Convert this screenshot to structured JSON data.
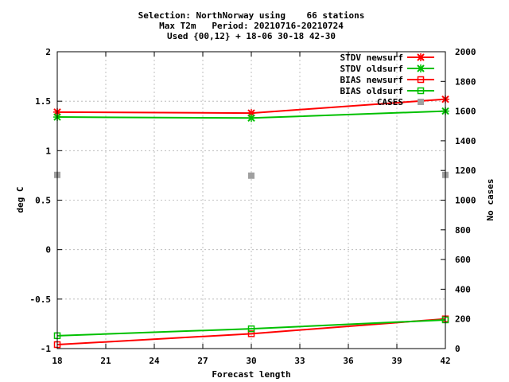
{
  "chart_data": {
    "type": "line",
    "title_lines": [
      "Selection: NorthNorway using    66 stations",
      "Max T2m   Period: 20210716-20210724",
      "Used {00,12} + 18-06 30-18 42-30"
    ],
    "xlabel": "Forecast length",
    "ylabel": "deg C",
    "y2label": "No cases",
    "xlim": [
      18,
      42
    ],
    "ylim": [
      -1,
      2
    ],
    "y2lim": [
      0,
      2000
    ],
    "x_ticks": [
      18,
      21,
      24,
      27,
      30,
      33,
      36,
      39,
      42
    ],
    "y_ticks": [
      {
        "value": -1,
        "label": "-1"
      },
      {
        "value": -0.5,
        "label": "-0.5"
      },
      {
        "value": 0,
        "label": "0"
      },
      {
        "value": 0.5,
        "label": "0.5"
      },
      {
        "value": 1,
        "label": "1"
      },
      {
        "value": 1.5,
        "label": "1.5"
      },
      {
        "value": 2,
        "label": "2"
      }
    ],
    "y2_ticks": [
      0,
      200,
      400,
      600,
      800,
      1000,
      1200,
      1400,
      1600,
      1800,
      2000
    ],
    "grid": true,
    "legend_position": "top-right",
    "series": [
      {
        "name": "STDV newsurf",
        "color": "#ff0000",
        "marker": "x",
        "axis": "y",
        "x": [
          18,
          30,
          42
        ],
        "values": [
          1.39,
          1.38,
          1.52
        ]
      },
      {
        "name": "STDV oldsurf",
        "color": "#00c000",
        "marker": "x",
        "axis": "y",
        "x": [
          18,
          30,
          42
        ],
        "values": [
          1.34,
          1.33,
          1.4
        ]
      },
      {
        "name": "BIAS newsurf",
        "color": "#ff0000",
        "marker": "square",
        "axis": "y",
        "x": [
          18,
          30,
          42
        ],
        "values": [
          -0.96,
          -0.85,
          -0.7
        ]
      },
      {
        "name": "BIAS oldsurf",
        "color": "#00c000",
        "marker": "square",
        "axis": "y",
        "x": [
          18,
          30,
          42
        ],
        "values": [
          -0.87,
          -0.8,
          -0.71
        ]
      },
      {
        "name": "CASES",
        "color": "#a0a0a0",
        "marker": "filled-square",
        "axis": "y2",
        "x": [
          18,
          30,
          42
        ],
        "values": [
          1170,
          1165,
          1170
        ]
      }
    ]
  }
}
